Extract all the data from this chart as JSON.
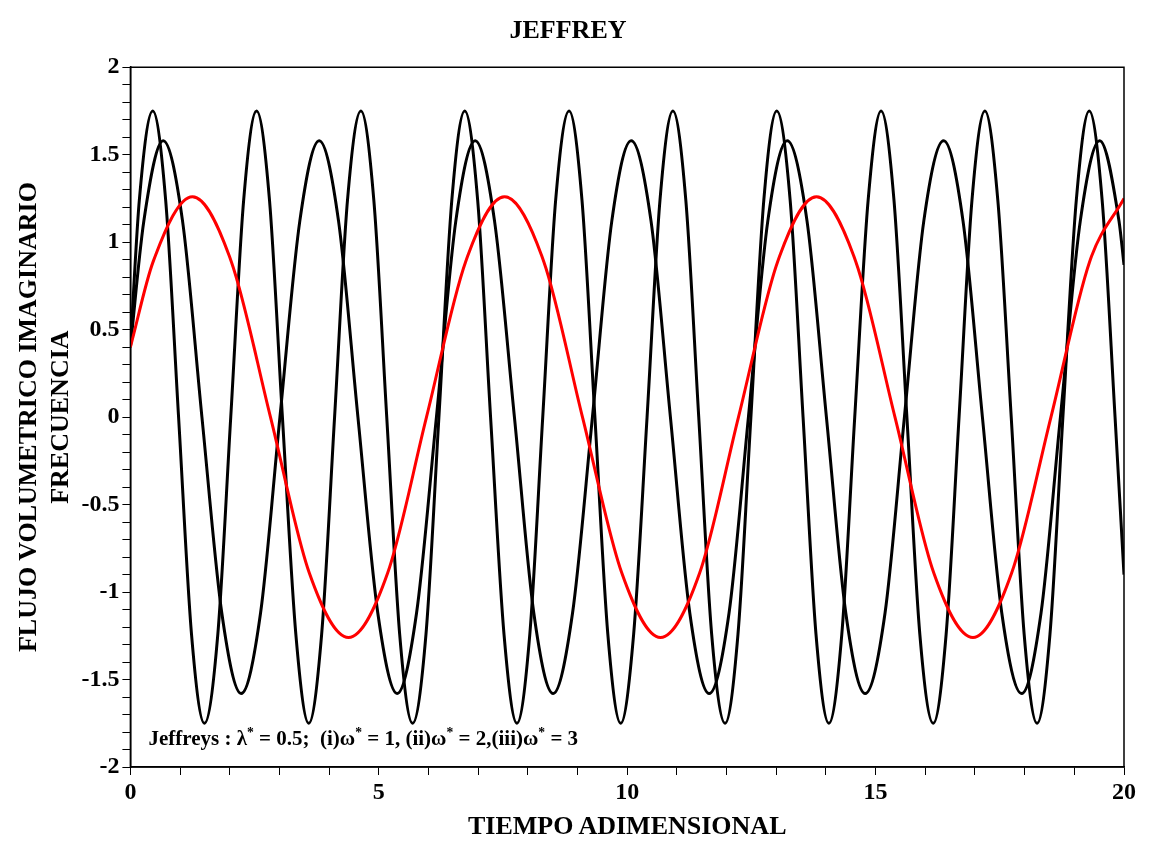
{
  "chart_data": {
    "type": "line",
    "title": "JEFFREY",
    "xlabel": "TIEMPO ADIMENSIONAL",
    "ylabel": "FLUJO VOLUMETRICO IMAGINARIO\nFRECUENCIA",
    "annotations": [
      "Jeffreys : λ$^{*}$ = 0.5;  (i)ω$^{*}$ = 1, (ii)ω$^{*}$ = 2,(iii)ω$^{*}$ = 3"
    ],
    "xlim": [
      0,
      20
    ],
    "ylim": [
      -2,
      2
    ],
    "xticks": [
      0,
      {
        "value": 1,
        "label": null
      },
      {
        "value": 2,
        "label": null
      },
      {
        "value": 3,
        "label": null
      },
      {
        "value": 4,
        "label": null
      },
      5,
      {
        "value": 6,
        "label": null
      },
      {
        "value": 7,
        "label": null
      },
      {
        "value": 8,
        "label": null
      },
      {
        "value": 9,
        "label": null
      },
      10,
      {
        "value": 11,
        "label": null
      },
      {
        "value": 12,
        "label": null
      },
      {
        "value": 13,
        "label": null
      },
      {
        "value": 14,
        "label": null
      },
      15,
      {
        "value": 16,
        "label": null
      },
      {
        "value": 17,
        "label": null
      },
      {
        "value": 18,
        "label": null
      },
      {
        "value": 19,
        "label": null
      },
      20
    ],
    "yticks": [
      -2,
      {
        "value": -1.9,
        "label": null
      },
      {
        "value": -1.8,
        "label": null
      },
      {
        "value": -1.7,
        "label": null
      },
      {
        "value": -1.6,
        "label": null
      },
      -1.5,
      {
        "value": -1.4,
        "label": null
      },
      {
        "value": -1.3,
        "label": null
      },
      {
        "value": -1.2,
        "label": null
      },
      {
        "value": -1.1,
        "label": null
      },
      -1,
      {
        "value": -0.9,
        "label": null
      },
      {
        "value": -0.8,
        "label": null
      },
      {
        "value": -0.7,
        "label": null
      },
      {
        "value": -0.6,
        "label": null
      },
      -0.5,
      {
        "value": -0.4,
        "label": null
      },
      {
        "value": -0.3,
        "label": null
      },
      {
        "value": -0.2,
        "label": null
      },
      {
        "value": -0.1,
        "label": null
      },
      0,
      {
        "value": 0.1,
        "label": null
      },
      {
        "value": 0.2,
        "label": null
      },
      {
        "value": 0.3,
        "label": null
      },
      {
        "value": 0.4,
        "label": null
      },
      0.5,
      {
        "value": 0.6,
        "label": null
      },
      {
        "value": 0.7,
        "label": null
      },
      {
        "value": 0.8,
        "label": null
      },
      {
        "value": 0.9,
        "label": null
      },
      1,
      {
        "value": 1.1,
        "label": null
      },
      {
        "value": 1.2,
        "label": null
      },
      {
        "value": 1.3,
        "label": null
      },
      {
        "value": 1.4,
        "label": null
      },
      1.5,
      {
        "value": 1.6,
        "label": null
      },
      {
        "value": 1.7,
        "label": null
      },
      {
        "value": 1.8,
        "label": null
      },
      {
        "value": 1.9,
        "label": null
      },
      2
    ],
    "grid": false,
    "legend": false,
    "marker": "none",
    "line_style": "solid",
    "series": [
      {
        "color": "#ff0000",
        "x": [
          0,
          0.46,
          1.25,
          2.03,
          2.82,
          3.6,
          4.39,
          5.18,
          5.96,
          6.75,
          7.53,
          8.32,
          9.1,
          9.89,
          10.67,
          11.46,
          12.24,
          13.03,
          13.81,
          14.6,
          15.39,
          16.17,
          16.96,
          17.74,
          18.53,
          19.31,
          20
        ],
        "values": [
          0.4,
          0.89,
          1.26,
          0.89,
          0,
          -0.89,
          -1.26,
          -0.89,
          0,
          0.89,
          1.26,
          0.89,
          0,
          -0.89,
          -1.26,
          -0.89,
          0,
          0.89,
          1.26,
          0.89,
          0,
          -0.89,
          -1.26,
          -0.89,
          0,
          0.89,
          1.25
        ]
      },
      {
        "color": "#000000",
        "x": [
          0,
          0.27,
          0.66,
          1.05,
          1.44,
          1.84,
          2.23,
          2.62,
          3.01,
          3.41,
          3.8,
          4.19,
          4.58,
          4.98,
          5.37,
          5.76,
          6.16,
          6.55,
          6.94,
          7.33,
          7.73,
          8.12,
          8.51,
          8.9,
          9.3,
          9.69,
          10.08,
          10.48,
          10.87,
          11.26,
          11.65,
          12.05,
          12.44,
          12.83,
          13.22,
          13.62,
          14.01,
          14.4,
          14.79,
          15.19,
          15.58,
          15.97,
          16.37,
          16.76,
          17.15,
          17.54,
          17.94,
          18.33,
          18.72,
          19.12,
          19.51,
          19.9,
          20
        ],
        "values": [
          0.4,
          1.12,
          1.58,
          1.12,
          0,
          -1.12,
          -1.58,
          -1.12,
          0,
          1.12,
          1.58,
          1.12,
          0,
          -1.12,
          -1.58,
          -1.12,
          0,
          1.12,
          1.58,
          1.12,
          0,
          -1.12,
          -1.58,
          -1.12,
          0,
          1.12,
          1.58,
          1.12,
          0,
          -1.12,
          -1.58,
          -1.12,
          0,
          1.12,
          1.58,
          1.12,
          0,
          -1.12,
          -1.58,
          -1.12,
          0,
          1.12,
          1.58,
          1.12,
          0,
          -1.12,
          -1.58,
          -1.12,
          0,
          1.12,
          1.58,
          1.12,
          0.87
        ]
      },
      {
        "color": "#000000",
        "x": [
          0,
          0.18,
          0.45,
          0.71,
          0.97,
          1.23,
          1.49,
          1.76,
          2.02,
          2.28,
          2.54,
          2.8,
          3.06,
          3.33,
          3.59,
          3.85,
          4.11,
          4.37,
          4.64,
          4.9,
          5.16,
          5.42,
          5.68,
          5.95,
          6.21,
          6.47,
          6.73,
          6.99,
          7.25,
          7.52,
          7.78,
          8.04,
          8.3,
          8.56,
          8.83,
          9.09,
          9.35,
          9.61,
          9.87,
          10.13,
          10.4,
          10.66,
          10.92,
          11.18,
          11.44,
          11.7,
          11.97,
          12.23,
          12.49,
          12.75,
          13.01,
          13.28,
          13.54,
          13.8,
          14.06,
          14.32,
          14.58,
          14.85,
          15.11,
          15.37,
          15.63,
          15.89,
          16.16,
          16.42,
          16.68,
          16.94,
          17.2,
          17.46,
          17.73,
          17.99,
          18.25,
          18.51,
          18.77,
          19.04,
          19.3,
          19.56,
          19.82,
          20
        ],
        "values": [
          0.4,
          1.24,
          1.75,
          1.24,
          0,
          -1.24,
          -1.75,
          -1.24,
          0,
          1.24,
          1.75,
          1.24,
          0,
          -1.24,
          -1.75,
          -1.24,
          0,
          1.24,
          1.75,
          1.24,
          0,
          -1.24,
          -1.75,
          -1.24,
          0,
          1.24,
          1.75,
          1.24,
          0,
          -1.24,
          -1.75,
          -1.24,
          0,
          1.24,
          1.75,
          1.24,
          0,
          -1.24,
          -1.75,
          -1.24,
          0,
          1.24,
          1.75,
          1.24,
          0,
          -1.24,
          -1.75,
          -1.24,
          0,
          1.24,
          1.75,
          1.24,
          0,
          -1.24,
          -1.75,
          -1.24,
          0,
          1.24,
          1.75,
          1.24,
          0,
          -1.24,
          -1.75,
          -1.24,
          0,
          1.24,
          1.75,
          1.24,
          0,
          -1.24,
          -1.75,
          -1.24,
          0,
          1.24,
          1.75,
          1.24,
          0,
          -0.9
        ]
      }
    ]
  }
}
